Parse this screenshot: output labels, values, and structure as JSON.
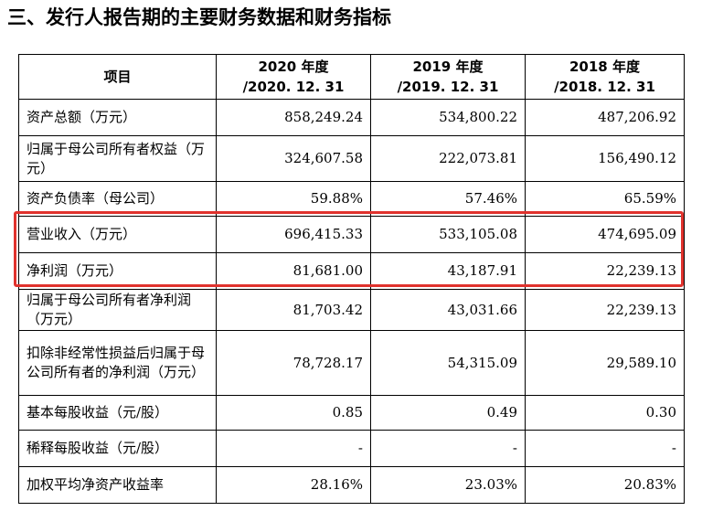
{
  "heading": "三、发行人报告期的主要财务数据和财务指标",
  "table": {
    "headers": [
      "项目",
      "2020 年度\n/2020. 12. 31",
      "2019 年度\n/2019. 12. 31",
      "2018 年度\n/2018. 12. 31"
    ],
    "rows": [
      {
        "label": "资产总额（万元）",
        "values": [
          "858,249.24",
          "534,800.22",
          "487,206.92"
        ]
      },
      {
        "label": "归属于母公司所有者权益（万元）",
        "values": [
          "324,607.58",
          "222,073.81",
          "156,490.12"
        ]
      },
      {
        "label": "资产负债率（母公司）",
        "values": [
          "59.88%",
          "57.46%",
          "65.59%"
        ]
      },
      {
        "label": "营业收入（万元）",
        "values": [
          "696,415.33",
          "533,105.08",
          "474,695.09"
        ]
      },
      {
        "label": "净利润（万元）",
        "values": [
          "81,681.00",
          "43,187.91",
          "22,239.13"
        ]
      },
      {
        "label": "归属于母公司所有者净利润（万元）",
        "values": [
          "81,703.42",
          "43,031.66",
          "22,239.13"
        ]
      },
      {
        "label": "扣除非经常性损益后归属于母公司所有者的净利润（万元）",
        "values": [
          "78,728.17",
          "54,315.09",
          "29,589.10"
        ]
      },
      {
        "label": "基本每股收益（元/股）",
        "values": [
          "0.85",
          "0.49",
          "0.30"
        ]
      },
      {
        "label": "稀释每股收益（元/股）",
        "values": [
          "-",
          "-",
          "-"
        ]
      },
      {
        "label": "加权平均净资产收益率",
        "values": [
          "28.16%",
          "23.03%",
          "20.83%"
        ]
      }
    ]
  },
  "highlight_color": "#e0322d"
}
